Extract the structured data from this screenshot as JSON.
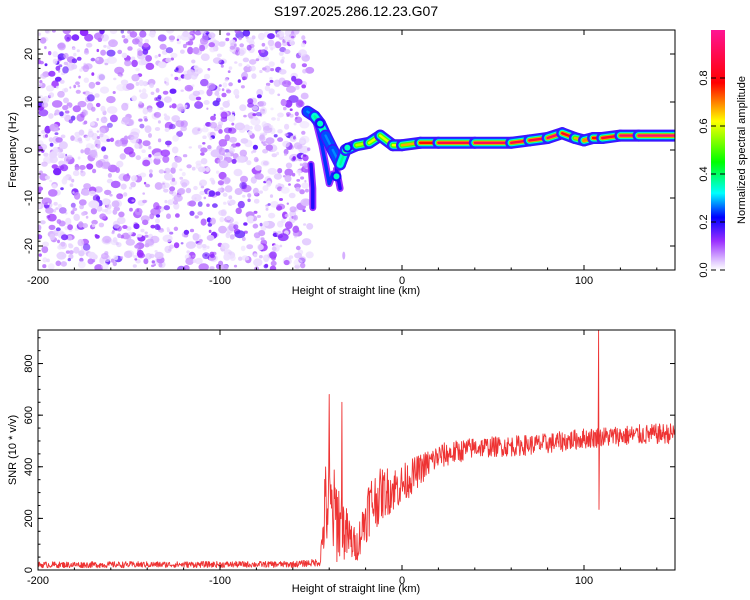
{
  "title": "S197.2025.286.12.23.G07",
  "colors": {
    "snr_line": "#ee3333",
    "background": "#ffffff"
  },
  "chart_data": [
    {
      "type": "heatmap",
      "title": "",
      "xlabel": "Height of straight line (km)",
      "ylabel": "Frequency (Hz)",
      "xlim": [
        -200,
        150
      ],
      "ylim": [
        -25,
        25
      ],
      "xticks": [
        {
          "value": -200,
          "label": "-200"
        },
        {
          "value": -100,
          "label": "-100"
        },
        {
          "value": 0,
          "label": "0"
        },
        {
          "value": 100,
          "label": "100"
        }
      ],
      "yticks": [
        {
          "value": -20,
          "label": "-20"
        },
        {
          "value": -10,
          "label": "-10"
        },
        {
          "value": 0,
          "label": "0"
        },
        {
          "value": 10,
          "label": "10"
        },
        {
          "value": 20,
          "label": "20"
        }
      ],
      "colorbar": {
        "label": "Normalized spectral amplitude",
        "range": [
          0,
          1
        ],
        "ticks": [
          {
            "value": 0.0,
            "label": "0.0"
          },
          {
            "value": 0.2,
            "label": "0.2"
          },
          {
            "value": 0.4,
            "label": "0.4"
          },
          {
            "value": 0.6,
            "label": "0.6"
          },
          {
            "value": 0.8,
            "label": "0.8"
          }
        ]
      },
      "noise_region": {
        "x_range": [
          -200,
          -55
        ],
        "y_range": [
          -25,
          25
        ],
        "typical_amplitude": 0.1
      },
      "ridge": [
        {
          "x": -52,
          "y": 8,
          "amp": 0.25
        },
        {
          "x": -48,
          "y": 7,
          "amp": 0.3
        },
        {
          "x": -45,
          "y": 5.5,
          "amp": 0.45
        },
        {
          "x": -42,
          "y": 3,
          "amp": 0.3
        },
        {
          "x": -38,
          "y": 0,
          "amp": 0.25
        },
        {
          "x": -34,
          "y": -3,
          "amp": 0.3
        },
        {
          "x": -31,
          "y": 0,
          "amp": 0.45
        },
        {
          "x": -25,
          "y": 1,
          "amp": 0.55
        },
        {
          "x": -18,
          "y": 1.5,
          "amp": 0.6
        },
        {
          "x": -12,
          "y": 3,
          "amp": 0.6
        },
        {
          "x": -5,
          "y": 1,
          "amp": 0.6
        },
        {
          "x": 0,
          "y": 1,
          "amp": 0.65
        },
        {
          "x": 10,
          "y": 1.5,
          "amp": 0.7
        },
        {
          "x": 20,
          "y": 1.5,
          "amp": 0.85
        },
        {
          "x": 40,
          "y": 1.5,
          "amp": 0.9
        },
        {
          "x": 60,
          "y": 1.5,
          "amp": 0.9
        },
        {
          "x": 70,
          "y": 2,
          "amp": 0.85
        },
        {
          "x": 80,
          "y": 2.5,
          "amp": 0.9
        },
        {
          "x": 88,
          "y": 3.5,
          "amp": 0.95
        },
        {
          "x": 95,
          "y": 2.5,
          "amp": 0.7
        },
        {
          "x": 100,
          "y": 2,
          "amp": 0.65
        },
        {
          "x": 105,
          "y": 2.5,
          "amp": 0.75
        },
        {
          "x": 110,
          "y": 2.5,
          "amp": 0.8
        },
        {
          "x": 120,
          "y": 3,
          "amp": 0.9
        },
        {
          "x": 130,
          "y": 3,
          "amp": 0.95
        },
        {
          "x": 150,
          "y": 3,
          "amp": 0.95
        }
      ],
      "branches": [
        {
          "points": [
            {
              "x": -47,
              "y": 5.5
            },
            {
              "x": -44,
              "y": 1
            },
            {
              "x": -42,
              "y": -3
            },
            {
              "x": -40,
              "y": -7
            },
            {
              "x": -38,
              "y": -5
            }
          ],
          "amp": 0.3
        },
        {
          "points": [
            {
              "x": -50,
              "y": -3
            },
            {
              "x": -49,
              "y": -8
            },
            {
              "x": -49,
              "y": -12
            }
          ],
          "amp": 0.25
        },
        {
          "points": [
            {
              "x": -36,
              "y": -4
            },
            {
              "x": -34,
              "y": -8
            }
          ],
          "amp": 0.25
        }
      ],
      "hotspots": [
        {
          "x": -45,
          "y": 5.5,
          "amp": 0.5
        },
        {
          "x": -36,
          "y": -5.5,
          "amp": 0.5
        },
        {
          "x": -30,
          "y": 0.5,
          "amp": 0.5
        }
      ]
    },
    {
      "type": "line",
      "title": "",
      "xlabel": "Height of straight line (km)",
      "ylabel": "SNR (10 * v/v)",
      "xlim": [
        -200,
        150
      ],
      "ylim": [
        0,
        930
      ],
      "xticks": [
        {
          "value": -200,
          "label": "-200"
        },
        {
          "value": -100,
          "label": "-100"
        },
        {
          "value": 0,
          "label": "0"
        },
        {
          "value": 100,
          "label": "100"
        }
      ],
      "yticks": [
        {
          "value": 0,
          "label": "0"
        },
        {
          "value": 200,
          "label": "200"
        },
        {
          "value": 400,
          "label": "400"
        },
        {
          "value": 600,
          "label": "600"
        },
        {
          "value": 800,
          "label": "800"
        }
      ],
      "series": [
        {
          "name": "SNR",
          "envelope": [
            {
              "x": -200,
              "mean": 20,
              "amp": 12
            },
            {
              "x": -60,
              "mean": 22,
              "amp": 12
            },
            {
              "x": -45,
              "mean": 30,
              "amp": 15
            },
            {
              "x": -42,
              "mean": 250,
              "amp": 180
            },
            {
              "x": -35,
              "mean": 200,
              "amp": 180
            },
            {
              "x": -30,
              "mean": 130,
              "amp": 100
            },
            {
              "x": -25,
              "mean": 90,
              "amp": 60
            },
            {
              "x": -18,
              "mean": 250,
              "amp": 120
            },
            {
              "x": -10,
              "mean": 300,
              "amp": 100
            },
            {
              "x": 0,
              "mean": 330,
              "amp": 80
            },
            {
              "x": 10,
              "mean": 390,
              "amp": 60
            },
            {
              "x": 20,
              "mean": 440,
              "amp": 50
            },
            {
              "x": 40,
              "mean": 475,
              "amp": 40
            },
            {
              "x": 60,
              "mean": 480,
              "amp": 40
            },
            {
              "x": 80,
              "mean": 490,
              "amp": 40
            },
            {
              "x": 100,
              "mean": 510,
              "amp": 40
            },
            {
              "x": 120,
              "mean": 520,
              "amp": 40
            },
            {
              "x": 150,
              "mean": 530,
              "amp": 40
            }
          ],
          "peaks": [
            {
              "x": -40,
              "y": 680
            },
            {
              "x": -33,
              "y": 650
            },
            {
              "x": 108,
              "y": 930
            }
          ],
          "dips": [
            {
              "x": 108,
              "y": 235
            }
          ]
        }
      ]
    }
  ]
}
